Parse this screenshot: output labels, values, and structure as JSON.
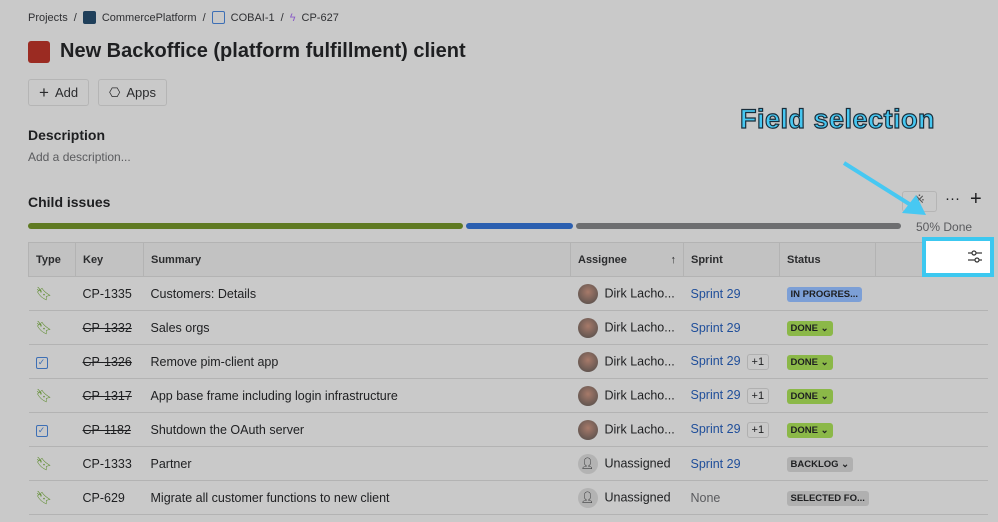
{
  "breadcrumb": {
    "items": [
      "Projects",
      "CommercePlatform",
      "COBAI-1",
      "CP-627"
    ]
  },
  "issue": {
    "title": "New Backoffice (platform fulfillment) client"
  },
  "actions": {
    "add": "Add",
    "apps": "Apps"
  },
  "description": {
    "heading": "Description",
    "placeholder": "Add a description..."
  },
  "child_issues": {
    "heading": "Child issues",
    "progress_text": "50% Done",
    "progress": {
      "done": 0.5,
      "in_progress": 0.125,
      "todo": 0.375
    },
    "columns": [
      "Type",
      "Key",
      "Summary",
      "Assignee",
      "Sprint",
      "Status"
    ],
    "rows": [
      {
        "type": "story",
        "key": "CP-1335",
        "done": false,
        "summary": "Customers: Details",
        "assignee": "Dirk Lacho...",
        "sprint": "Sprint 29",
        "extra": "",
        "status": "IN PROGRES...",
        "status_color": "#7c9fd6"
      },
      {
        "type": "story",
        "key": "CP-1332",
        "done": true,
        "summary": "Sales orgs",
        "assignee": "Dirk Lacho...",
        "sprint": "Sprint 29",
        "extra": "",
        "status": "DONE",
        "status_color": "#8bb848"
      },
      {
        "type": "task",
        "key": "CP-1326",
        "done": true,
        "summary": "Remove pim-client app",
        "assignee": "Dirk Lacho...",
        "sprint": "Sprint 29",
        "extra": "+1",
        "status": "DONE",
        "status_color": "#8bb848"
      },
      {
        "type": "story",
        "key": "CP-1317",
        "done": true,
        "summary": "App base frame including login infrastructure",
        "assignee": "Dirk Lacho...",
        "sprint": "Sprint 29",
        "extra": "+1",
        "status": "DONE",
        "status_color": "#8bb848"
      },
      {
        "type": "task",
        "key": "CP-1182",
        "done": true,
        "summary": "Shutdown the OAuth server",
        "assignee": "Dirk Lacho...",
        "sprint": "Sprint 29",
        "extra": "+1",
        "status": "DONE",
        "status_color": "#8bb848"
      },
      {
        "type": "story",
        "key": "CP-1333",
        "done": false,
        "summary": "Partner",
        "assignee": "Unassigned",
        "sprint": "Sprint 29",
        "extra": "",
        "status": "BACKLOG",
        "status_color": "#b0b0b0"
      },
      {
        "type": "story",
        "key": "CP-629",
        "done": false,
        "summary": "Migrate all customer functions to new client",
        "assignee": "Unassigned",
        "sprint": "None",
        "extra": "",
        "status": "SELECTED FO...",
        "status_color": "#b0b0b0"
      }
    ]
  },
  "annotation": {
    "label": "Field selection"
  }
}
